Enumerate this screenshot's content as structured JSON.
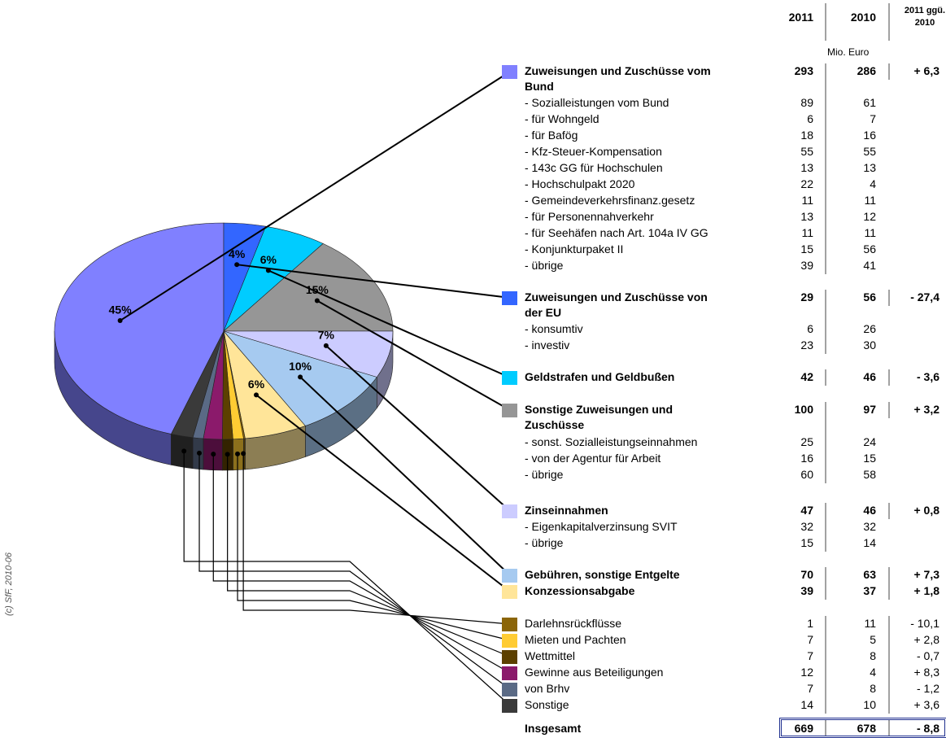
{
  "chart_data": {
    "type": "pie",
    "categories": [
      "Zuweisungen und Zuschüsse vom Bund",
      "Zuweisungen und Zuschüsse von der EU",
      "Geldstrafen und Geldbußen",
      "Sonstige Zuweisungen und Zuschüsse",
      "Zinseinnahmen",
      "Gebühren, sonstige Entgelte",
      "Konzessionsabgabe",
      "Darlehnsrückflüsse",
      "Mieten und Pachten",
      "Wettmittel",
      "Gewinne aus Beteiligungen",
      "von Brhv",
      "Sonstige"
    ],
    "values": [
      45,
      4,
      6,
      15,
      7,
      10,
      6,
      0.15,
      1,
      1,
      1.8,
      1,
      2.1
    ],
    "value_labels": [
      "45%",
      "4%",
      "6%",
      "15%",
      "7%",
      "10%",
      "6%",
      null,
      null,
      null,
      null,
      null,
      null
    ],
    "colors": [
      "#8080ff",
      "#3366ff",
      "#00ccff",
      "#969696",
      "#ccccff",
      "#a6caf0",
      "#ffe599",
      "#8b6508",
      "#ffcc33",
      "#5c4000",
      "#8b1a6b",
      "#5a6a85",
      "#3a3a3a"
    ]
  },
  "table": {
    "headers": [
      "2011",
      "2010",
      "2011 ggü. 2010"
    ],
    "unit": "Mio. Euro",
    "groups": [
      {
        "values": [
          293,
          286,
          "+ 6,3"
        ],
        "rows": [
          [
            "- Sozialleistungen vom Bund",
            89,
            61
          ],
          [
            "- für Wohngeld",
            6,
            7
          ],
          [
            "- für Bafög",
            18,
            16
          ],
          [
            "- Kfz-Steuer-Kompensation",
            55,
            55
          ],
          [
            "- 143c GG für Hochschulen",
            13,
            13
          ],
          [
            "- Hochschulpakt 2020",
            22,
            4
          ],
          [
            "- Gemeindeverkehrsfinanz.gesetz",
            11,
            11
          ],
          [
            "- für Personennahverkehr",
            13,
            12
          ],
          [
            "- für Seehäfen nach Art. 104a IV GG",
            11,
            11
          ],
          [
            "- Konjunkturpaket II",
            15,
            56
          ],
          [
            "- übrige",
            39,
            41
          ]
        ]
      },
      {
        "values": [
          29,
          56,
          "- 27,4"
        ],
        "rows": [
          [
            "- konsumtiv",
            6,
            26
          ],
          [
            "- investiv",
            23,
            30
          ]
        ]
      },
      {
        "values": [
          42,
          46,
          "- 3,6"
        ]
      },
      {
        "values": [
          100,
          97,
          "+ 3,2"
        ],
        "rows": [
          [
            "- sonst. Sozialleistungseinnahmen",
            25,
            24
          ],
          [
            "- von der Agentur für Arbeit",
            16,
            15
          ],
          [
            "- übrige",
            60,
            58
          ]
        ]
      },
      {
        "values": [
          47,
          46,
          "+ 0,8"
        ],
        "rows": [
          [
            "- Eigenkapitalverzinsung SVIT",
            32,
            32
          ],
          [
            "- übrige",
            15,
            14
          ]
        ]
      },
      {
        "values": [
          70,
          63,
          "+ 7,3"
        ]
      },
      {
        "values": [
          39,
          37,
          "+ 1,8"
        ]
      },
      {
        "values": [
          1,
          11,
          "- 10,1"
        ]
      },
      {
        "values": [
          7,
          5,
          "+ 2,8"
        ]
      },
      {
        "values": [
          7,
          8,
          "- 0,7"
        ]
      },
      {
        "values": [
          12,
          4,
          "+ 8,3"
        ]
      },
      {
        "values": [
          7,
          8,
          "- 1,2"
        ]
      },
      {
        "values": [
          14,
          10,
          "+ 3,6"
        ]
      }
    ],
    "total": {
      "label": "Insgesamt",
      "values": [
        669,
        678,
        "- 8,8"
      ]
    }
  },
  "credit": "(c) SfF, 2010-06"
}
